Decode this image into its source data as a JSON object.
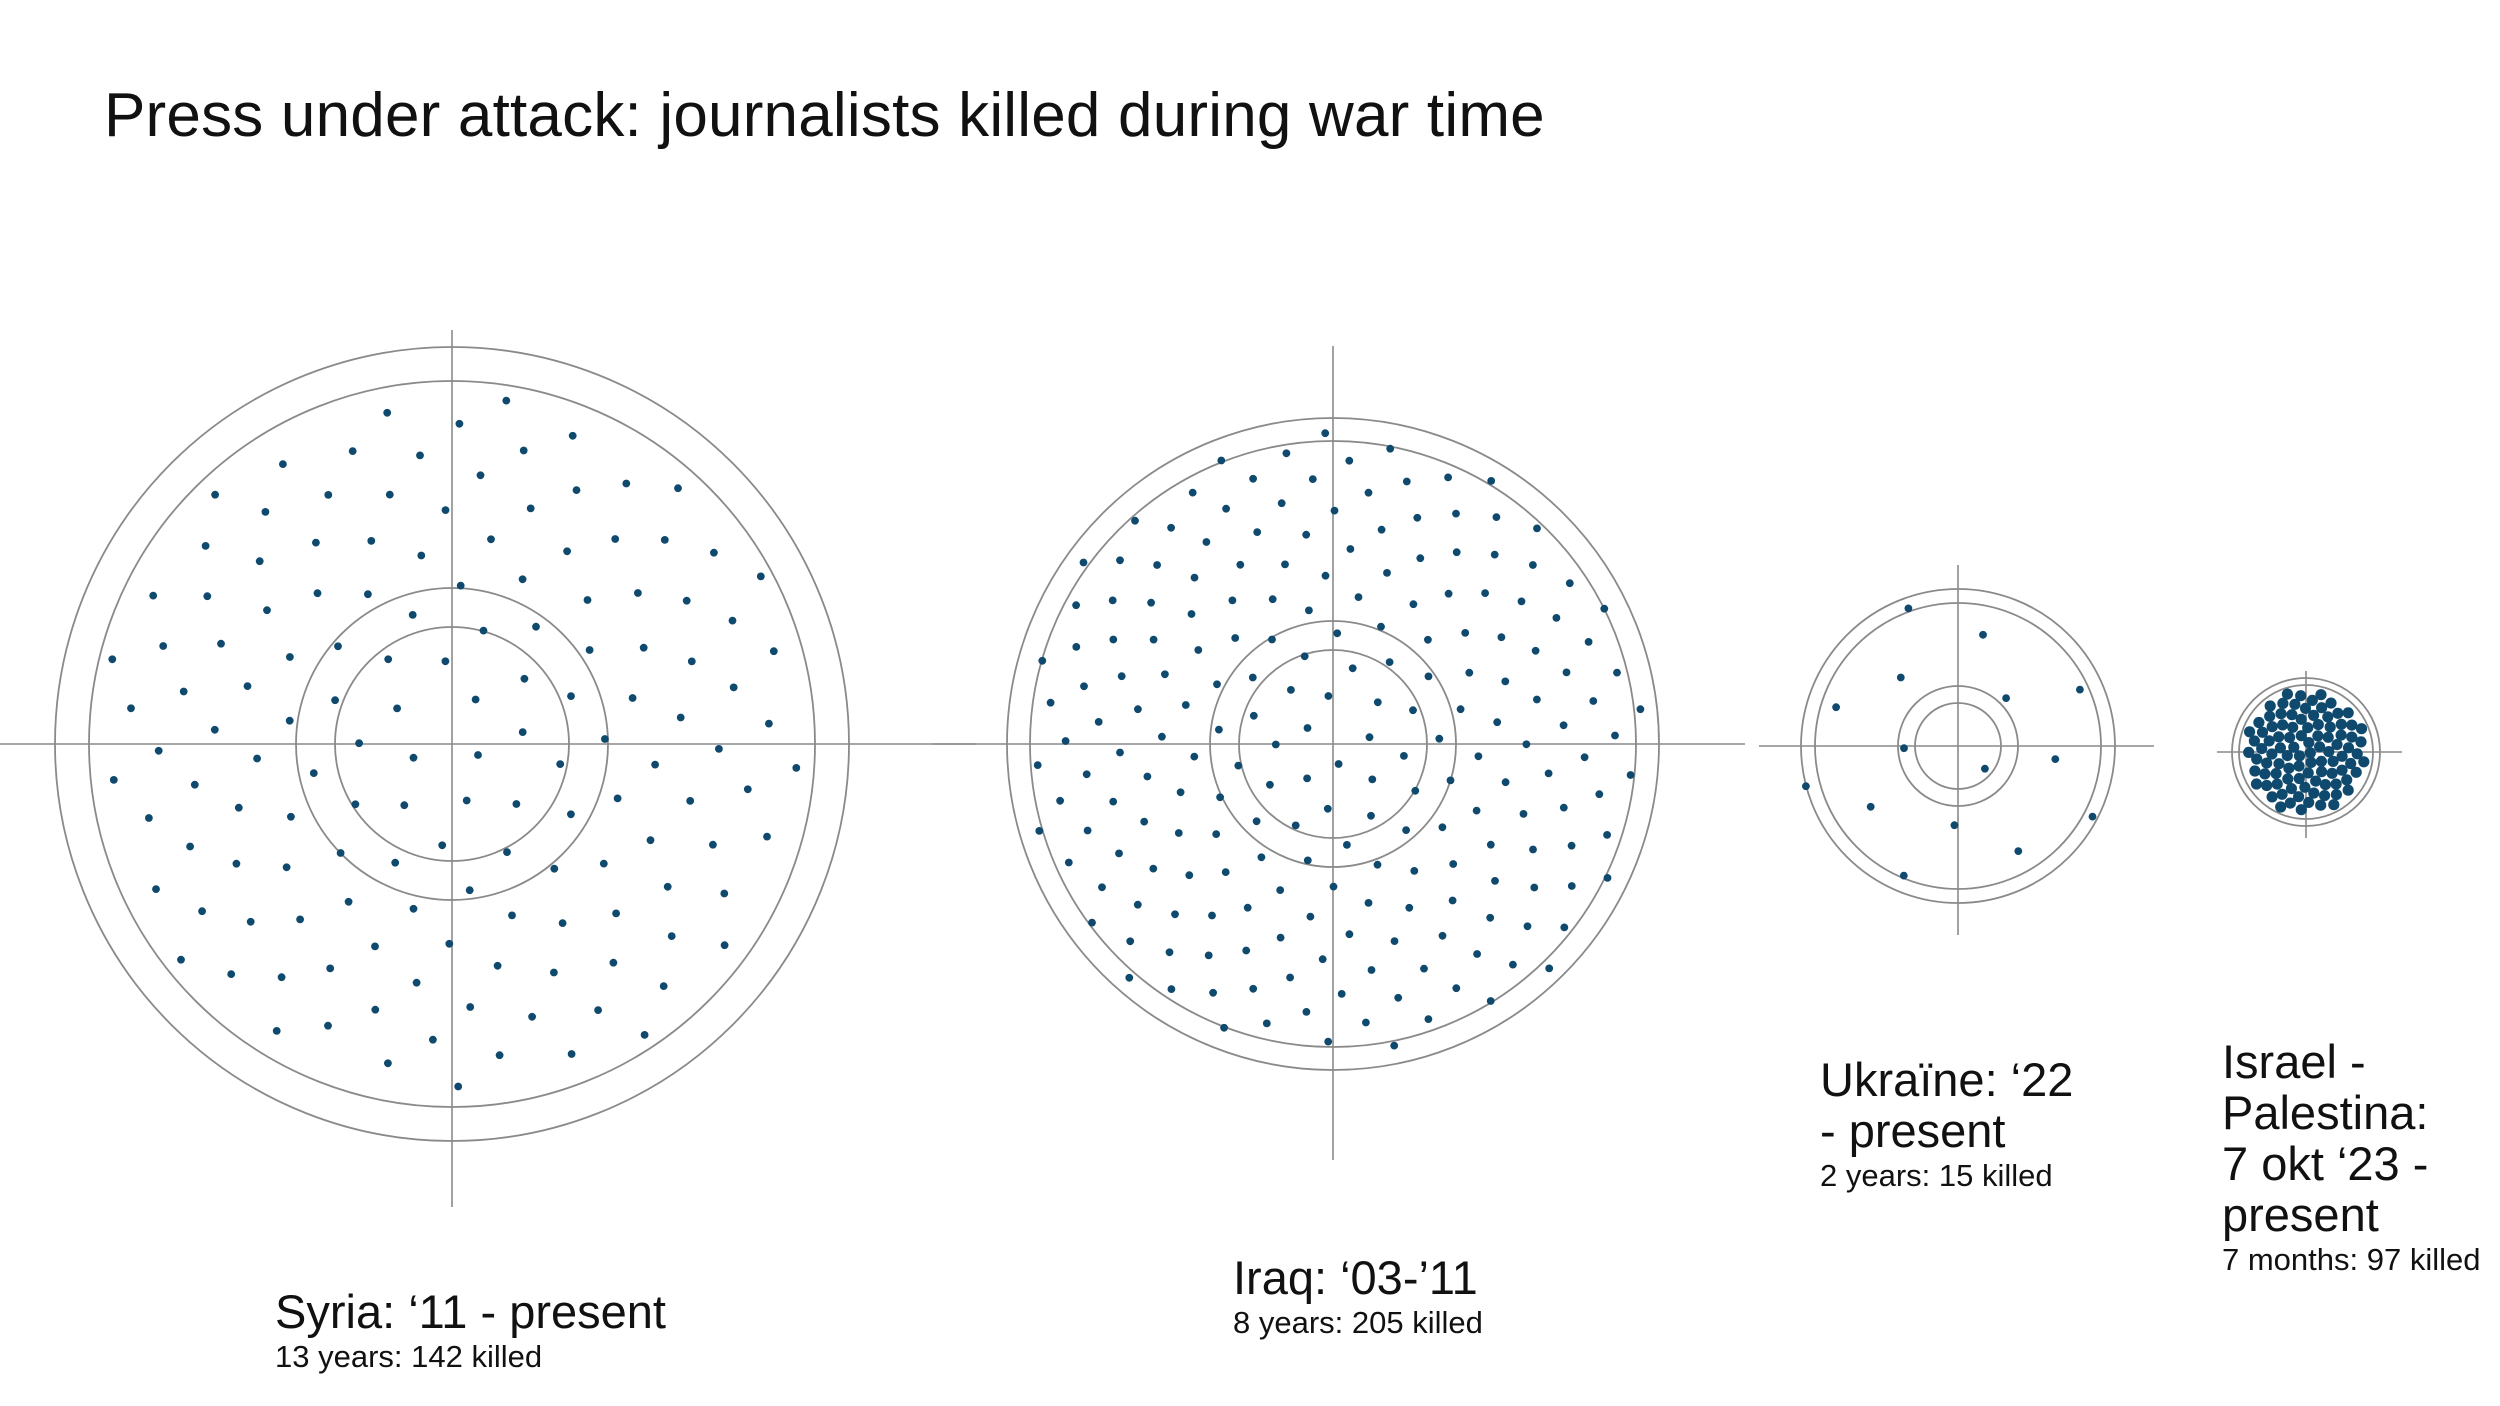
{
  "title": "Press under attack: journalists killed during war time",
  "chart_data": {
    "type": "scatter",
    "title": "Press under attack: journalists killed during war time",
    "colors": {
      "dot": "#0f4a6e",
      "ring": "#8a8a8a",
      "crosshair": "#8a8a8a"
    },
    "targets": [
      {
        "label_lines": [
          "Syria: ‘11 - present"
        ],
        "subtitle": "13 years: 142 killed",
        "years": 13,
        "killed": 142
      },
      {
        "label_lines": [
          "Iraq: ‘03-’11"
        ],
        "subtitle": "8 years: 205 killed",
        "years": 8,
        "killed": 205
      },
      {
        "label_lines": [
          "Ukraïne: ‘22",
          "- present"
        ],
        "subtitle": "2 years: 15 killed",
        "years": 2,
        "killed": 15
      },
      {
        "label_lines": [
          "Israel -",
          "Palestina:",
          "7 okt ‘23 -",
          "present"
        ],
        "subtitle": "7 months: 97 killed",
        "months": 7,
        "killed": 97
      }
    ]
  }
}
